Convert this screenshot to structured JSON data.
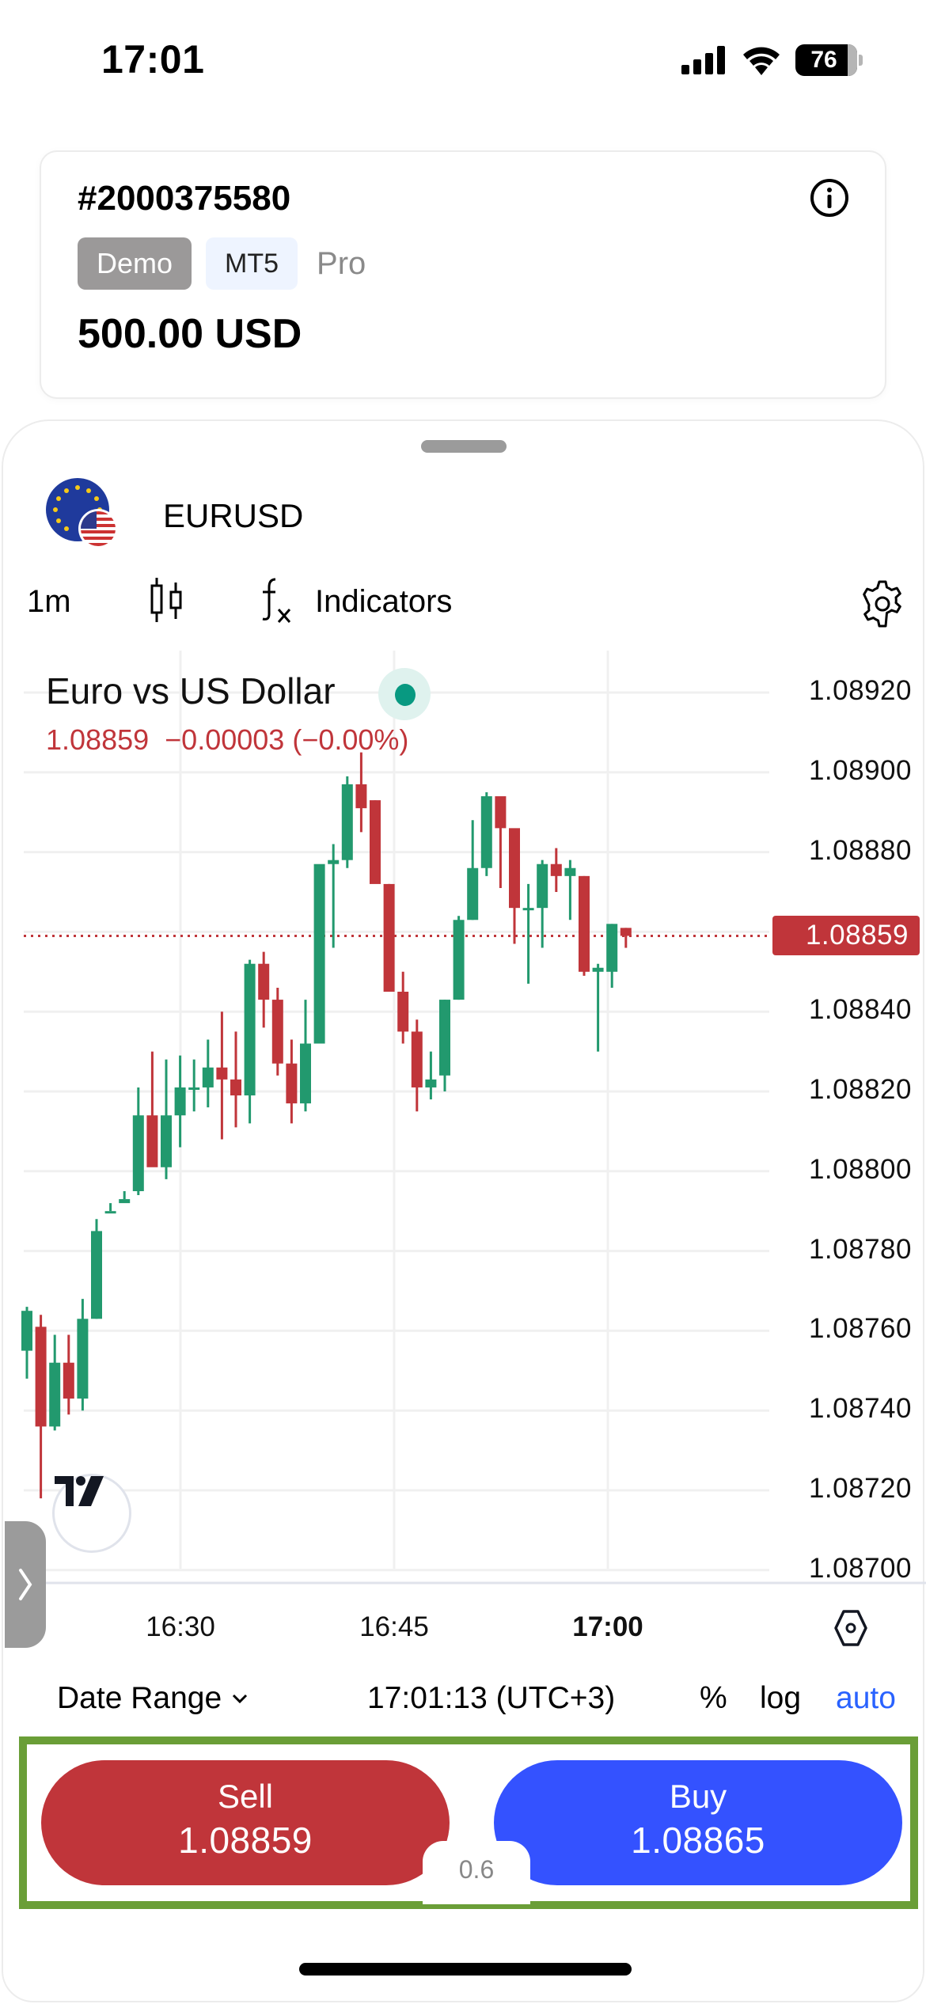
{
  "status_bar": {
    "time": "17:01",
    "battery": "76"
  },
  "account": {
    "id": "#2000375580",
    "badges": {
      "type": "Demo",
      "platform": "MT5",
      "tier": "Pro"
    },
    "balance": "500.00 USD"
  },
  "symbol": {
    "name": "EURUSD"
  },
  "toolbar": {
    "timeframe": "1m",
    "indicators_label": "Indicators"
  },
  "chart": {
    "title": "Euro vs US Dollar",
    "last": "1.08859",
    "change": "−0.00003",
    "change_pct": "(−0.00%)",
    "current_price_tag": "1.08859",
    "y_labels": [
      "1.08920",
      "1.08900",
      "1.08880",
      "1.08840",
      "1.08820",
      "1.08800",
      "1.08780",
      "1.08760",
      "1.08740",
      "1.08720",
      "1.08700"
    ],
    "x_labels": [
      "16:30",
      "16:45",
      "17:00"
    ]
  },
  "bottom_bar": {
    "date_range": "Date Range",
    "clock": "17:01:13 (UTC+3)",
    "percent": "%",
    "log": "log",
    "auto": "auto"
  },
  "trade": {
    "sell_label": "Sell",
    "sell_price": "1.08859",
    "buy_label": "Buy",
    "buy_price": "1.08865",
    "spread": "0.6"
  },
  "colors": {
    "up": "#22996e",
    "down": "#c0353a",
    "buy": "#3452ff",
    "sell": "#c0353a",
    "accent": "#2962ff",
    "highlight_border": "#6a9e37"
  },
  "chart_data": {
    "type": "candlestick",
    "title": "Euro vs US Dollar",
    "symbol": "EURUSD",
    "interval": "1m",
    "ylim": [
      1.087,
      1.08925
    ],
    "y_ticks": [
      1.087,
      1.0872,
      1.0874,
      1.0876,
      1.0878,
      1.088,
      1.0882,
      1.0884,
      1.0886,
      1.0888,
      1.089,
      1.0892
    ],
    "x_ticks": [
      "16:30",
      "16:45",
      "17:00"
    ],
    "last_price": 1.08859,
    "candles": [
      [
        1.08755,
        1.08766,
        1.08748,
        1.08765
      ],
      [
        1.08761,
        1.08764,
        1.08718,
        1.08736
      ],
      [
        1.08736,
        1.08759,
        1.08735,
        1.08752
      ],
      [
        1.08752,
        1.08759,
        1.08739,
        1.08743
      ],
      [
        1.08743,
        1.08768,
        1.0874,
        1.08763
      ],
      [
        1.08763,
        1.08788,
        1.08763,
        1.08785
      ],
      [
        1.0879,
        1.08792,
        1.0879,
        1.0879
      ],
      [
        1.08792,
        1.08795,
        1.08793,
        1.08793
      ],
      [
        1.08795,
        1.08821,
        1.08794,
        1.08814
      ],
      [
        1.08814,
        1.0883,
        1.0881,
        1.08801
      ],
      [
        1.08801,
        1.08828,
        1.08798,
        1.08814
      ],
      [
        1.08814,
        1.08829,
        1.08806,
        1.08821
      ],
      [
        1.08821,
        1.08828,
        1.08815,
        1.08821
      ],
      [
        1.08821,
        1.08833,
        1.08816,
        1.08826
      ],
      [
        1.08826,
        1.0884,
        1.08808,
        1.08823
      ],
      [
        1.08823,
        1.08835,
        1.08811,
        1.08819
      ],
      [
        1.08819,
        1.08853,
        1.08812,
        1.08852
      ],
      [
        1.08852,
        1.08855,
        1.08836,
        1.08843
      ],
      [
        1.08843,
        1.08846,
        1.08824,
        1.08827
      ],
      [
        1.08827,
        1.08833,
        1.08812,
        1.08817
      ],
      [
        1.08817,
        1.08843,
        1.08815,
        1.08832
      ],
      [
        1.08832,
        1.08875,
        1.08832,
        1.08877
      ],
      [
        1.08877,
        1.08882,
        1.08856,
        1.08878
      ],
      [
        1.08878,
        1.08899,
        1.08876,
        1.08897
      ],
      [
        1.08897,
        1.08905,
        1.08885,
        1.08891
      ],
      [
        1.08893,
        1.08893,
        1.08875,
        1.08872
      ],
      [
        1.08872,
        1.08872,
        1.08846,
        1.08845
      ],
      [
        1.08845,
        1.0885,
        1.08832,
        1.08835
      ],
      [
        1.08835,
        1.08838,
        1.08815,
        1.08821
      ],
      [
        1.08821,
        1.0883,
        1.08818,
        1.08823
      ],
      [
        1.08824,
        1.08843,
        1.0882,
        1.08843
      ],
      [
        1.08843,
        1.08864,
        1.08843,
        1.08863
      ],
      [
        1.08863,
        1.08888,
        1.08863,
        1.08876
      ],
      [
        1.08876,
        1.08895,
        1.08874,
        1.08894
      ],
      [
        1.08894,
        1.08893,
        1.08871,
        1.08886
      ],
      [
        1.08886,
        1.08883,
        1.08857,
        1.08866
      ],
      [
        1.08866,
        1.08872,
        1.08847,
        1.08866
      ],
      [
        1.08866,
        1.08878,
        1.08856,
        1.08877
      ],
      [
        1.08877,
        1.08881,
        1.0887,
        1.08874
      ],
      [
        1.08874,
        1.08878,
        1.08863,
        1.08876
      ],
      [
        1.08874,
        1.08874,
        1.08849,
        1.0885
      ],
      [
        1.0885,
        1.08852,
        1.0883,
        1.08851
      ],
      [
        1.0885,
        1.08862,
        1.08846,
        1.08862
      ],
      [
        1.08861,
        1.08861,
        1.08856,
        1.08859
      ]
    ]
  }
}
